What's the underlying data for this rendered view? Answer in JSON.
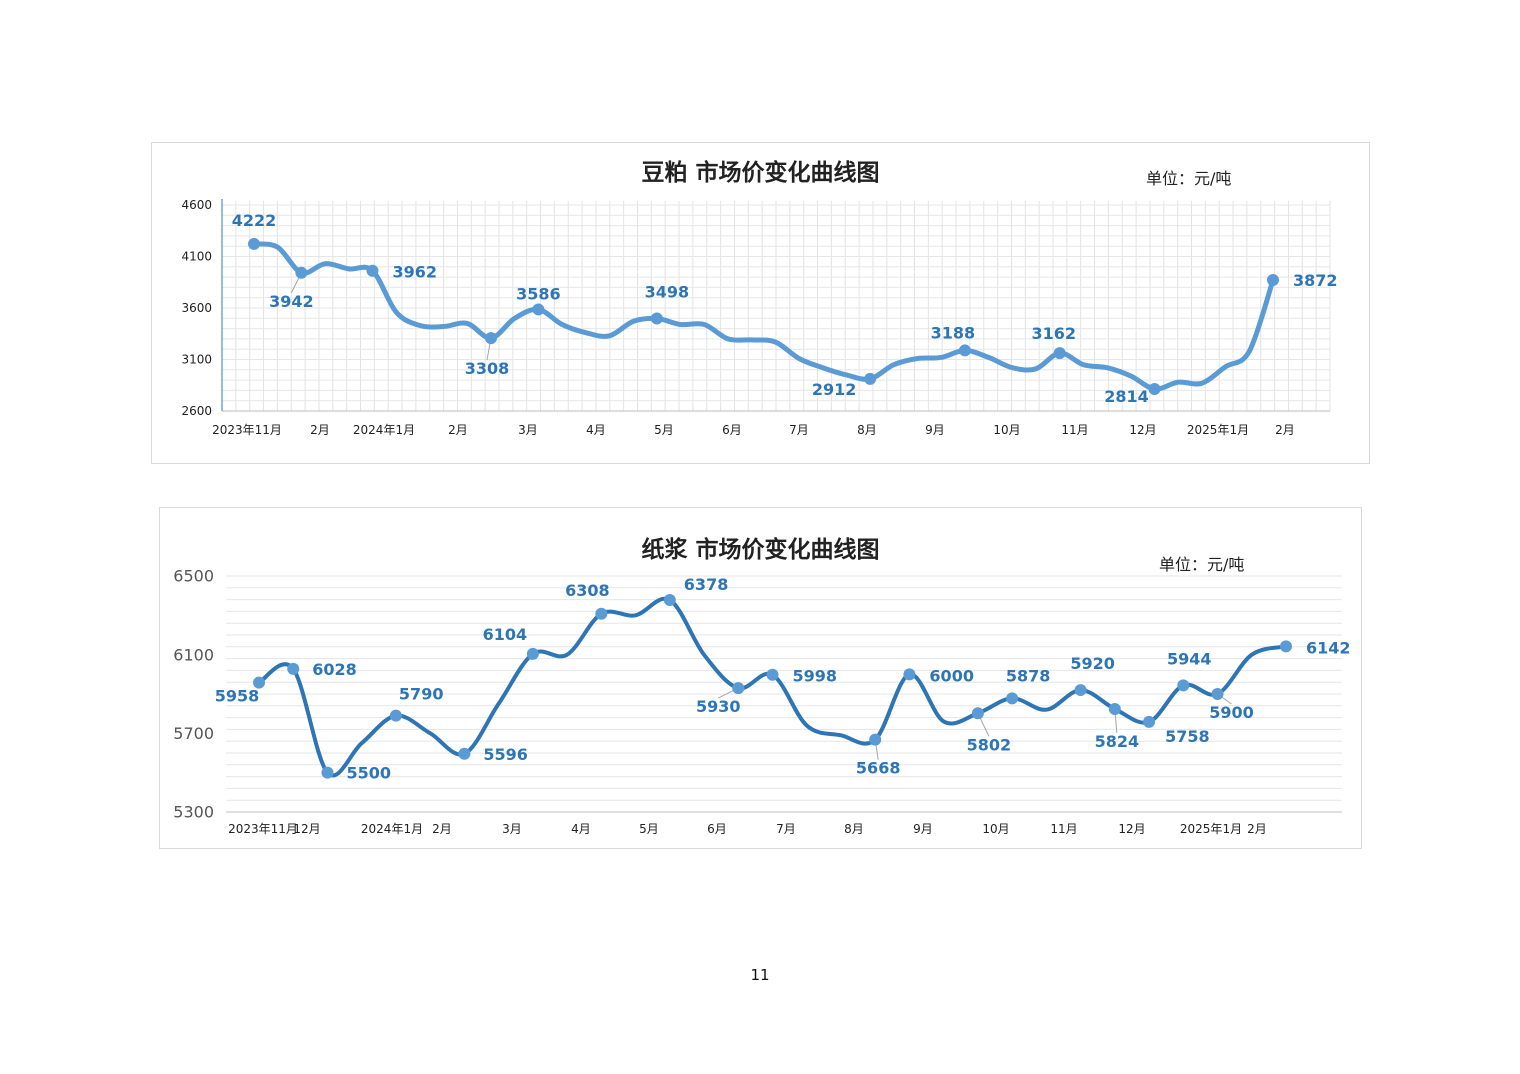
{
  "page_number": "11",
  "chart_data": [
    {
      "type": "line",
      "title": "豆粕 市场价变化曲线图",
      "unit": "单位：元/吨",
      "ylim": [
        2600,
        4600
      ],
      "yticks": [
        "4600",
        "4100",
        "3600",
        "3100",
        "2600"
      ],
      "grid": true,
      "color": "#5b9bd5",
      "x_labels": [
        "2023年11月",
        "2月",
        "2024年1月",
        "2月",
        "3月",
        "4月",
        "5月",
        "6月",
        "7月",
        "8月",
        "9月",
        "10月",
        "11月",
        "12月",
        "2025年1月",
        "2月"
      ],
      "series": [
        {
          "values": [
            4222,
            4190,
            3942,
            4030,
            3980,
            3962,
            3560,
            3430,
            3420,
            3450,
            3308,
            3500,
            3586,
            3440,
            3360,
            3330,
            3470,
            3498,
            3440,
            3440,
            3300,
            3290,
            3270,
            3110,
            3020,
            2950,
            2912,
            3050,
            3110,
            3120,
            3188,
            3120,
            3020,
            3010,
            3162,
            3050,
            3020,
            2940,
            2814,
            2880,
            2870,
            3030,
            3180,
            3872
          ]
        }
      ],
      "labeled_points": [
        {
          "index": 0,
          "value": "4222"
        },
        {
          "index": 2,
          "value": "3942"
        },
        {
          "index": 5,
          "value": "3962"
        },
        {
          "index": 10,
          "value": "3308"
        },
        {
          "index": 12,
          "value": "3586"
        },
        {
          "index": 17,
          "value": "3498"
        },
        {
          "index": 26,
          "value": "2912"
        },
        {
          "index": 30,
          "value": "3188"
        },
        {
          "index": 34,
          "value": "3162"
        },
        {
          "index": 38,
          "value": "2814"
        },
        {
          "index": 43,
          "value": "3872"
        }
      ]
    },
    {
      "type": "line",
      "title": "纸浆 市场价变化曲线图",
      "unit": "单位：元/吨",
      "ylim": [
        5300,
        6500
      ],
      "yticks": [
        "6500",
        "6100",
        "5700",
        "5300"
      ],
      "grid": true,
      "color": "#2e75b6",
      "x_labels": [
        "2023年11月",
        "12月",
        "2024年1月",
        "2月",
        "3月",
        "4月",
        "5月",
        "6月",
        "7月",
        "8月",
        "9月",
        "10月",
        "11月",
        "12月",
        "2025年1月",
        "2月"
      ],
      "series": [
        {
          "values": [
            5958,
            6028,
            5500,
            5650,
            5790,
            5700,
            5596,
            5850,
            6104,
            6100,
            6308,
            6300,
            6378,
            6100,
            5930,
            5998,
            5740,
            5690,
            5668,
            6000,
            5760,
            5802,
            5878,
            5820,
            5920,
            5824,
            5758,
            5944,
            5900,
            6100,
            6142
          ]
        }
      ],
      "labeled_points": [
        {
          "index": 0,
          "value": "5958"
        },
        {
          "index": 1,
          "value": "6028"
        },
        {
          "index": 2,
          "value": "5500"
        },
        {
          "index": 4,
          "value": "5790"
        },
        {
          "index": 6,
          "value": "5596"
        },
        {
          "index": 8,
          "value": "6104"
        },
        {
          "index": 10,
          "value": "6308"
        },
        {
          "index": 12,
          "value": "6378"
        },
        {
          "index": 14,
          "value": "5930"
        },
        {
          "index": 15,
          "value": "5998"
        },
        {
          "index": 18,
          "value": "5668"
        },
        {
          "index": 19,
          "value": "6000"
        },
        {
          "index": 21,
          "value": "5802"
        },
        {
          "index": 22,
          "value": "5878"
        },
        {
          "index": 24,
          "value": "5920"
        },
        {
          "index": 25,
          "value": "5824"
        },
        {
          "index": 26,
          "value": "5758"
        },
        {
          "index": 27,
          "value": "5944"
        },
        {
          "index": 28,
          "value": "5900"
        },
        {
          "index": 30,
          "value": "6142"
        }
      ]
    }
  ]
}
